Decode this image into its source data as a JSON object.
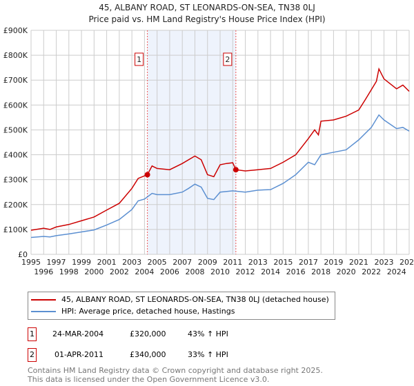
{
  "chart_data": {
    "type": "line",
    "title": "45, ALBANY ROAD, ST LEONARDS-ON-SEA, TN38 0LJ",
    "subtitle": "Price paid vs. HM Land Registry's House Price Index (HPI)",
    "xlim": [
      1995,
      2025
    ],
    "ylim": [
      0,
      900000
    ],
    "y_ticks": [
      0,
      100000,
      200000,
      300000,
      400000,
      500000,
      600000,
      700000,
      800000,
      900000
    ],
    "y_tick_labels": [
      "£0",
      "£100K",
      "£200K",
      "£300K",
      "£400K",
      "£500K",
      "£600K",
      "£700K",
      "£800K",
      "£900K"
    ],
    "x_ticks": [
      1995,
      1996,
      1997,
      1998,
      1999,
      2000,
      2001,
      2002,
      2003,
      2004,
      2005,
      2006,
      2007,
      2008,
      2009,
      2010,
      2011,
      2012,
      2013,
      2014,
      2015,
      2016,
      2017,
      2018,
      2019,
      2020,
      2021,
      2022,
      2023,
      2024,
      2025
    ],
    "grid": true,
    "shaded_region": [
      2004.23,
      2011.25
    ],
    "series": [
      {
        "name": "45, ALBANY ROAD, ST LEONARDS-ON-SEA, TN38 0LJ (detached house)",
        "color": "#cc0000",
        "x": [
          1995,
          1996,
          1996.5,
          1997,
          1998,
          1999,
          2000,
          2001,
          2002,
          2003,
          2003.5,
          2004.23,
          2004.6,
          2005,
          2006,
          2007,
          2008,
          2008.5,
          2009,
          2009.5,
          2010,
          2010.5,
          2011,
          2011.25,
          2012,
          2013,
          2014,
          2015,
          2016,
          2017,
          2017.5,
          2017.8,
          2018,
          2019,
          2020,
          2021,
          2021.5,
          2022.4,
          2022.6,
          2023,
          2024,
          2024.5,
          2025
        ],
        "y": [
          97000,
          105000,
          100000,
          110000,
          120000,
          135000,
          150000,
          178000,
          205000,
          265000,
          305000,
          320000,
          355000,
          345000,
          340000,
          365000,
          395000,
          380000,
          320000,
          312000,
          360000,
          365000,
          368000,
          340000,
          335000,
          340000,
          345000,
          370000,
          400000,
          465000,
          500000,
          480000,
          535000,
          540000,
          555000,
          580000,
          620000,
          695000,
          745000,
          705000,
          665000,
          680000,
          655000
        ]
      },
      {
        "name": "HPI: Average price, detached house, Hastings",
        "color": "#5b8fd1",
        "x": [
          1995,
          1996,
          1996.5,
          1997,
          1998,
          1999,
          2000,
          2001,
          2002,
          2003,
          2003.5,
          2004,
          2004.6,
          2005,
          2006,
          2007,
          2007.5,
          2008,
          2008.5,
          2009,
          2009.5,
          2010,
          2011,
          2012,
          2013,
          2014,
          2015,
          2016,
          2017,
          2017.5,
          2018,
          2019,
          2020,
          2021,
          2022,
          2022.6,
          2023,
          2024,
          2024.5,
          2025
        ],
        "y": [
          68000,
          72000,
          70000,
          75000,
          82000,
          90000,
          98000,
          118000,
          140000,
          180000,
          215000,
          222000,
          245000,
          240000,
          240000,
          250000,
          265000,
          282000,
          270000,
          225000,
          220000,
          250000,
          255000,
          250000,
          258000,
          260000,
          285000,
          320000,
          370000,
          360000,
          400000,
          410000,
          420000,
          460000,
          510000,
          560000,
          540000,
          505000,
          510000,
          495000
        ]
      }
    ],
    "annotations": [
      {
        "label": "1",
        "x": 2004.23,
        "y": 320000
      },
      {
        "label": "2",
        "x": 2011.25,
        "y": 340000
      }
    ],
    "legend_position": "bottom"
  },
  "legend": {
    "red": "45, ALBANY ROAD, ST LEONARDS-ON-SEA, TN38 0LJ (detached house)",
    "blue": "HPI: Average price, detached house, Hastings"
  },
  "transactions": [
    {
      "num": "1",
      "date": "24-MAR-2004",
      "price": "£320,000",
      "hpi": "43% ↑ HPI"
    },
    {
      "num": "2",
      "date": "01-APR-2011",
      "price": "£340,000",
      "hpi": "33% ↑ HPI"
    }
  ],
  "footer": {
    "line1": "Contains HM Land Registry data © Crown copyright and database right 2025.",
    "line2": "This data is licensed under the Open Government Licence v3.0."
  }
}
